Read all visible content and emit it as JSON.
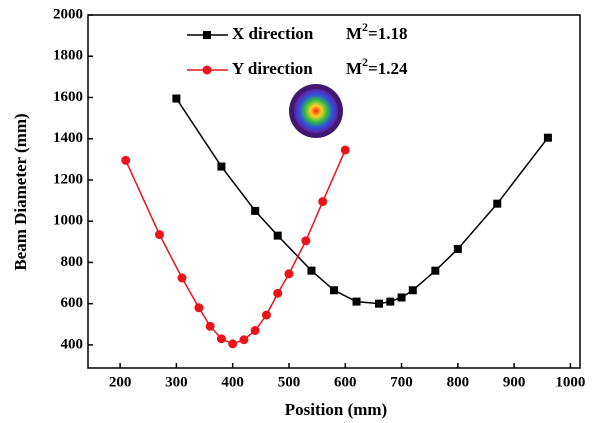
{
  "chart_data": {
    "type": "line",
    "x_label": "Position (mm)",
    "y_label": "Beam Diameter (mm)",
    "xlim": [
      143,
      1017
    ],
    "xticks": [
      200,
      300,
      400,
      500,
      600,
      700,
      800,
      900,
      1000
    ],
    "ylim": [
      288,
      2000
    ],
    "yticks": [
      400,
      600,
      800,
      1000,
      1200,
      1400,
      1600,
      1800,
      2000
    ],
    "series": [
      {
        "name": "X direction",
        "color": "#000000",
        "marker": "square",
        "x": [
          300,
          380,
          440,
          480,
          540,
          580,
          620,
          660,
          680,
          700,
          720,
          760,
          800,
          870,
          960
        ],
        "values": [
          1595,
          1265,
          1050,
          930,
          760,
          665,
          610,
          600,
          610,
          630,
          665,
          760,
          865,
          1085,
          1405
        ],
        "annotation": {
          "base": "M",
          "sup": "2",
          "rest": "=1.18"
        }
      },
      {
        "name": "Y direction",
        "color": "#e8141a",
        "marker": "circle",
        "x": [
          210,
          270,
          310,
          340,
          360,
          380,
          400,
          420,
          440,
          460,
          480,
          500,
          530,
          560,
          600
        ],
        "values": [
          1295,
          935,
          725,
          580,
          490,
          430,
          405,
          425,
          470,
          545,
          650,
          745,
          905,
          1095,
          1345
        ],
        "annotation": {
          "base": "M",
          "sup": "2",
          "rest": "=1.24"
        }
      }
    ]
  }
}
